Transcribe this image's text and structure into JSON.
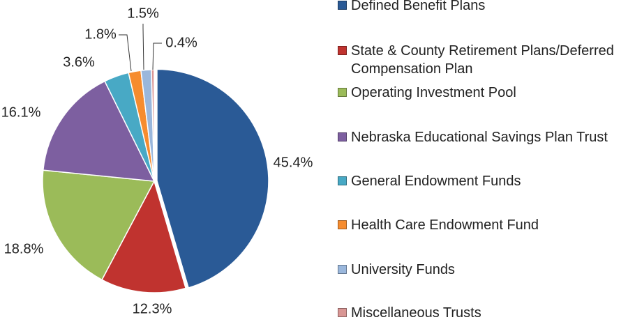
{
  "chart_data": {
    "type": "pie",
    "categories": [
      "Defined Benefit Plans",
      "State & County Retirement Plans/Deferred Compensation Plan",
      "Operating Investment Pool",
      "Nebraska Educational Savings Plan Trust",
      "General Endowment Funds",
      "Health Care Endowment Fund",
      "University Funds",
      "Miscellaneous Trusts"
    ],
    "values": [
      45.4,
      12.3,
      18.8,
      16.1,
      3.6,
      1.8,
      1.5,
      0.4
    ],
    "value_labels": [
      "45.4%",
      "12.3%",
      "18.8%",
      "16.1%",
      "3.6%",
      "1.8%",
      "1.5%",
      "0.4%"
    ],
    "colors": [
      "#2a5a96",
      "#c0332f",
      "#9bbb59",
      "#7d5fa0",
      "#48a9c5",
      "#f68c2f",
      "#9ab7dc",
      "#d99694"
    ],
    "legend": "right"
  }
}
